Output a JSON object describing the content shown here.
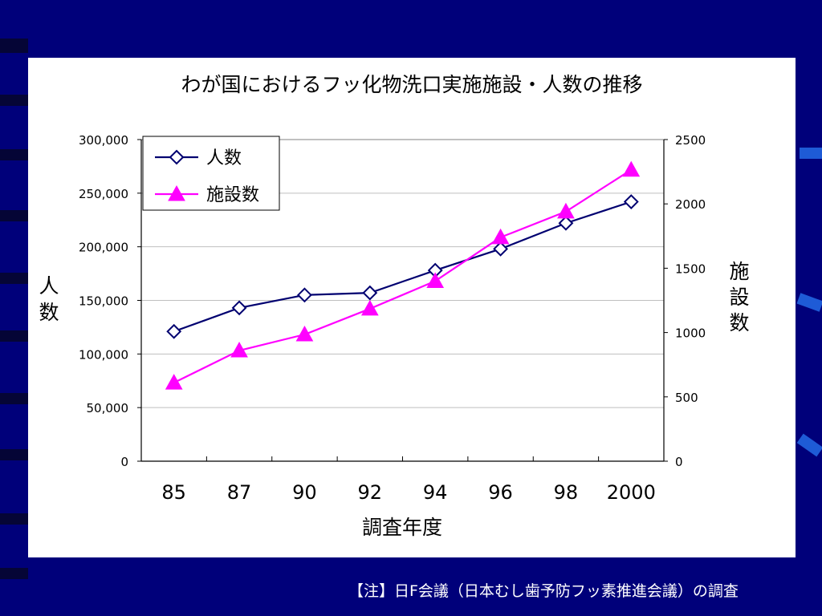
{
  "footnote": "【注】日F会議（日本むし歯予防フッ素推進会議）の調査",
  "colors": {
    "background": "#00007a",
    "panel": "#ffffff",
    "series_people": "#000070",
    "series_facilities": "#ff00ff"
  },
  "chart_data": {
    "type": "line",
    "title": "わが国におけるフッ化物洗口実施施設・人数の推移",
    "xlabel": "調査年度",
    "ylabel": "人\n数",
    "y2label": "施\n設\n数",
    "categories": [
      "85",
      "87",
      "90",
      "92",
      "94",
      "96",
      "98",
      "2000"
    ],
    "ylim": [
      0,
      300000
    ],
    "y_ticks": [
      0,
      50000,
      100000,
      150000,
      200000,
      250000,
      300000
    ],
    "y_tick_labels": [
      "0",
      "50,000",
      "100,000",
      "150,000",
      "200,000",
      "250,000",
      "300,000"
    ],
    "y2lim": [
      0,
      2500
    ],
    "y2_ticks": [
      0,
      500,
      1000,
      1500,
      2000,
      2500
    ],
    "y2_tick_labels": [
      "0",
      "500",
      "1000",
      "1500",
      "2000",
      "2500"
    ],
    "grid": true,
    "legend_position": "top-left",
    "series": [
      {
        "name": "人数",
        "axis": "left",
        "marker": "diamond",
        "values": [
          121000,
          143000,
          155000,
          157000,
          178000,
          198000,
          222000,
          242000
        ]
      },
      {
        "name": "施設数",
        "axis": "right",
        "marker": "triangle",
        "values": [
          610,
          860,
          985,
          1185,
          1400,
          1740,
          1940,
          2265
        ]
      }
    ]
  }
}
